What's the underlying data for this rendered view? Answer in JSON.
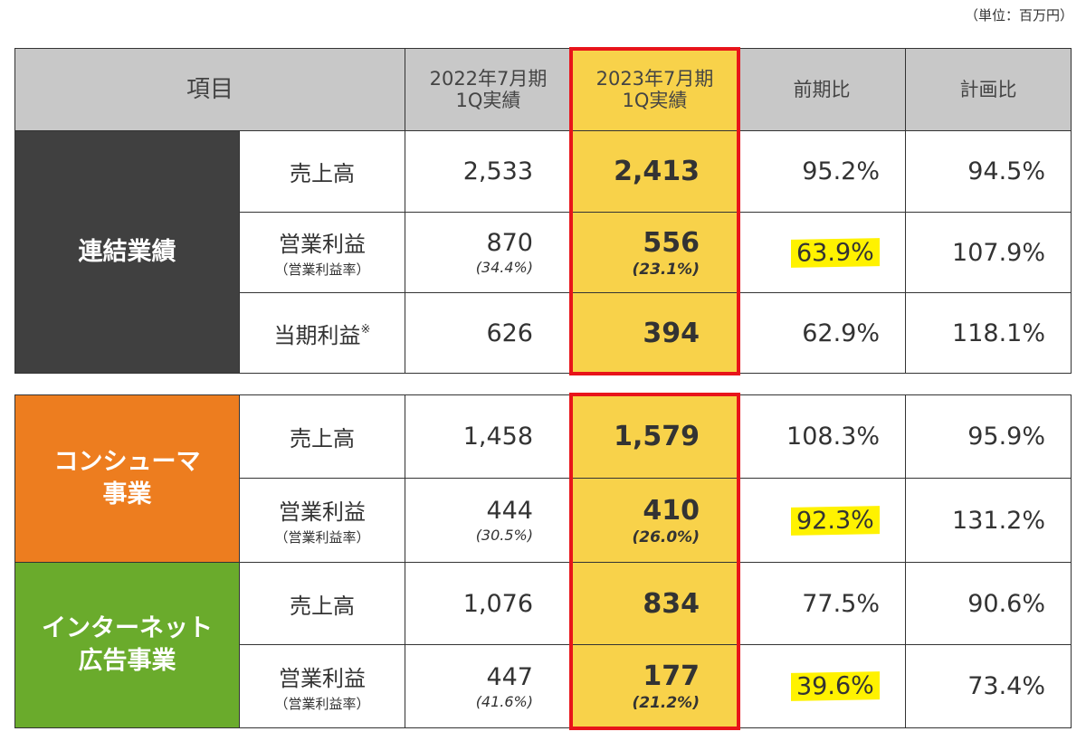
{
  "unit_note": "（単位：百万円）",
  "headers": {
    "item": "項目",
    "prev_line1": "2022年7月期",
    "prev_line2": "1Q実績",
    "curr_line1": "2023年7月期",
    "curr_line2": "1Q実績",
    "yoy": "前期比",
    "plan": "計画比"
  },
  "consolidated": {
    "segment_label": "連結業績",
    "rows": [
      {
        "item": "売上高",
        "sub": "",
        "prev": "2,533",
        "prev_rate": "",
        "curr": "2,413",
        "curr_rate": "",
        "yoy": "95.2%",
        "plan": "94.5%"
      },
      {
        "item": "営業利益",
        "sub": "（営業利益率）",
        "prev": "870",
        "prev_rate": "(34.4%)",
        "curr": "556",
        "curr_rate": "(23.1%)",
        "yoy": "63.9%",
        "plan": "107.9%"
      },
      {
        "item": "当期利益",
        "note": "※",
        "prev": "626",
        "curr": "394",
        "yoy": "62.9%",
        "plan": "118.1%"
      }
    ]
  },
  "consumer": {
    "segment_line1": "コンシューマ",
    "segment_line2": "事業",
    "rows": [
      {
        "item": "売上高",
        "prev": "1,458",
        "curr": "1,579",
        "yoy": "108.3%",
        "plan": "95.9%"
      },
      {
        "item": "営業利益",
        "sub": "（営業利益率）",
        "prev": "444",
        "prev_rate": "(30.5%)",
        "curr": "410",
        "curr_rate": "(26.0%)",
        "yoy": "92.3%",
        "plan": "131.2%"
      }
    ]
  },
  "internet_ad": {
    "segment_line1": "インターネット",
    "segment_line2": "広告事業",
    "rows": [
      {
        "item": "売上高",
        "prev": "1,076",
        "curr": "834",
        "yoy": "77.5%",
        "plan": "90.6%"
      },
      {
        "item": "営業利益",
        "sub": "（営業利益率）",
        "prev": "447",
        "prev_rate": "(41.6%)",
        "curr": "177",
        "curr_rate": "(21.2%)",
        "yoy": "39.6%",
        "plan": "73.4%"
      }
    ]
  },
  "colors": {
    "highlight_column": "#f8d24a",
    "marker": "#fff200",
    "red_box": "#e8141a",
    "consolidated": "#404040",
    "consumer": "#ed7d1f",
    "internet_ad": "#6aab2c"
  }
}
